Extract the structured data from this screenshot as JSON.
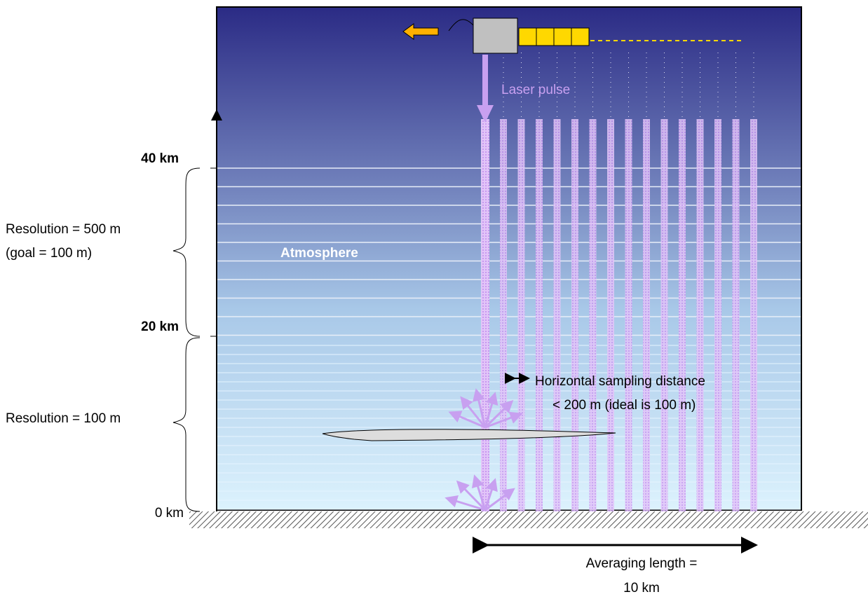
{
  "axis": {
    "labels": [
      "40 km",
      "20 km",
      "0 km"
    ]
  },
  "resolution": {
    "upper": [
      "Resolution =  500  m",
      "(goal = 100 m)"
    ],
    "lower": "Resolution = 100 m"
  },
  "atmosphere": "Atmosphere",
  "laser": "Laser pulse",
  "sampling": [
    "Horizontal sampling distance",
    "< 200 m (ideal is 100 m)"
  ],
  "averaging": [
    "Averaging length =",
    "10 km"
  ]
}
